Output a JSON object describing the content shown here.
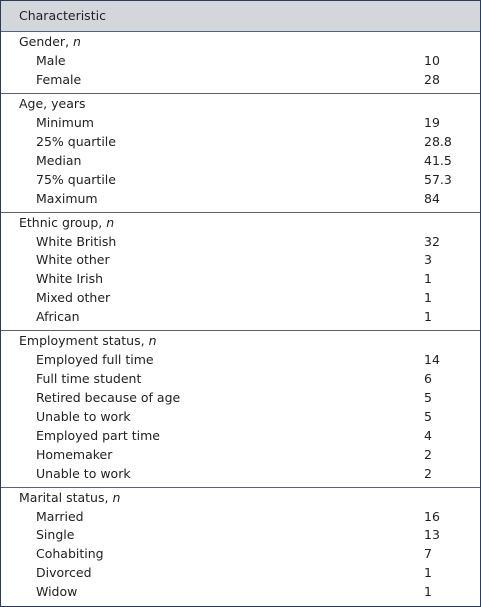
{
  "table": {
    "header": "Characteristic",
    "sections": [
      {
        "heading": "Gender,",
        "unit": "n",
        "rows": [
          [
            "Male",
            10
          ],
          [
            "Female",
            28
          ]
        ]
      },
      {
        "heading": "Age, years",
        "rows": [
          [
            "Minimum",
            19
          ],
          [
            "25% quartile",
            28.8
          ],
          [
            "Median",
            41.5
          ],
          [
            "75% quartile",
            57.3
          ],
          [
            "Maximum",
            84
          ]
        ]
      },
      {
        "heading": "Ethnic group,",
        "unit": "n",
        "rows": [
          [
            "White British",
            32
          ],
          [
            "White other",
            3
          ],
          [
            "White Irish",
            1
          ],
          [
            "Mixed other",
            1
          ],
          [
            "African",
            1
          ]
        ]
      },
      {
        "heading": "Employment status,",
        "unit": "n",
        "rows": [
          [
            "Employed full time",
            14
          ],
          [
            "Full time student",
            6
          ],
          [
            "Retired because of age",
            5
          ],
          [
            "Unable to work",
            5
          ],
          [
            "Employed part time",
            4
          ],
          [
            "Homemaker",
            2
          ],
          [
            "Unable to work",
            2
          ]
        ]
      },
      {
        "heading": "Marital status,",
        "unit": "n",
        "rows": [
          [
            "Married",
            16
          ],
          [
            "Single",
            13
          ],
          [
            "Cohabiting",
            7
          ],
          [
            "Divorced",
            1
          ],
          [
            "Widow",
            1
          ]
        ]
      }
    ]
  }
}
